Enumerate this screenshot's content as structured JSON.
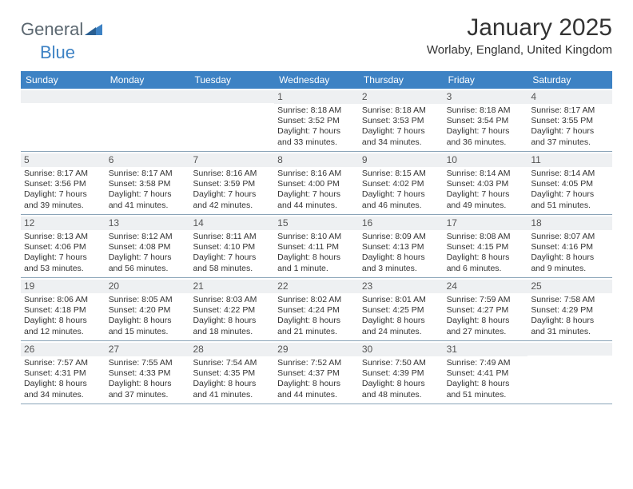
{
  "brand": {
    "word1": "General",
    "word2": "Blue",
    "color_general": "#5b6770",
    "color_blue": "#3d82c4"
  },
  "title": "January 2025",
  "location": "Worlaby, England, United Kingdom",
  "header_bg": "#3d82c4",
  "header_text_color": "#ffffff",
  "daynum_bg": "#eef0f2",
  "border_color": "#8aa4b8",
  "text_color": "#333333",
  "day_names": [
    "Sunday",
    "Monday",
    "Tuesday",
    "Wednesday",
    "Thursday",
    "Friday",
    "Saturday"
  ],
  "weeks": [
    [
      null,
      null,
      null,
      {
        "n": "1",
        "sr": "Sunrise: 8:18 AM",
        "ss": "Sunset: 3:52 PM",
        "d1": "Daylight: 7 hours",
        "d2": "and 33 minutes."
      },
      {
        "n": "2",
        "sr": "Sunrise: 8:18 AM",
        "ss": "Sunset: 3:53 PM",
        "d1": "Daylight: 7 hours",
        "d2": "and 34 minutes."
      },
      {
        "n": "3",
        "sr": "Sunrise: 8:18 AM",
        "ss": "Sunset: 3:54 PM",
        "d1": "Daylight: 7 hours",
        "d2": "and 36 minutes."
      },
      {
        "n": "4",
        "sr": "Sunrise: 8:17 AM",
        "ss": "Sunset: 3:55 PM",
        "d1": "Daylight: 7 hours",
        "d2": "and 37 minutes."
      }
    ],
    [
      {
        "n": "5",
        "sr": "Sunrise: 8:17 AM",
        "ss": "Sunset: 3:56 PM",
        "d1": "Daylight: 7 hours",
        "d2": "and 39 minutes."
      },
      {
        "n": "6",
        "sr": "Sunrise: 8:17 AM",
        "ss": "Sunset: 3:58 PM",
        "d1": "Daylight: 7 hours",
        "d2": "and 41 minutes."
      },
      {
        "n": "7",
        "sr": "Sunrise: 8:16 AM",
        "ss": "Sunset: 3:59 PM",
        "d1": "Daylight: 7 hours",
        "d2": "and 42 minutes."
      },
      {
        "n": "8",
        "sr": "Sunrise: 8:16 AM",
        "ss": "Sunset: 4:00 PM",
        "d1": "Daylight: 7 hours",
        "d2": "and 44 minutes."
      },
      {
        "n": "9",
        "sr": "Sunrise: 8:15 AM",
        "ss": "Sunset: 4:02 PM",
        "d1": "Daylight: 7 hours",
        "d2": "and 46 minutes."
      },
      {
        "n": "10",
        "sr": "Sunrise: 8:14 AM",
        "ss": "Sunset: 4:03 PM",
        "d1": "Daylight: 7 hours",
        "d2": "and 49 minutes."
      },
      {
        "n": "11",
        "sr": "Sunrise: 8:14 AM",
        "ss": "Sunset: 4:05 PM",
        "d1": "Daylight: 7 hours",
        "d2": "and 51 minutes."
      }
    ],
    [
      {
        "n": "12",
        "sr": "Sunrise: 8:13 AM",
        "ss": "Sunset: 4:06 PM",
        "d1": "Daylight: 7 hours",
        "d2": "and 53 minutes."
      },
      {
        "n": "13",
        "sr": "Sunrise: 8:12 AM",
        "ss": "Sunset: 4:08 PM",
        "d1": "Daylight: 7 hours",
        "d2": "and 56 minutes."
      },
      {
        "n": "14",
        "sr": "Sunrise: 8:11 AM",
        "ss": "Sunset: 4:10 PM",
        "d1": "Daylight: 7 hours",
        "d2": "and 58 minutes."
      },
      {
        "n": "15",
        "sr": "Sunrise: 8:10 AM",
        "ss": "Sunset: 4:11 PM",
        "d1": "Daylight: 8 hours",
        "d2": "and 1 minute."
      },
      {
        "n": "16",
        "sr": "Sunrise: 8:09 AM",
        "ss": "Sunset: 4:13 PM",
        "d1": "Daylight: 8 hours",
        "d2": "and 3 minutes."
      },
      {
        "n": "17",
        "sr": "Sunrise: 8:08 AM",
        "ss": "Sunset: 4:15 PM",
        "d1": "Daylight: 8 hours",
        "d2": "and 6 minutes."
      },
      {
        "n": "18",
        "sr": "Sunrise: 8:07 AM",
        "ss": "Sunset: 4:16 PM",
        "d1": "Daylight: 8 hours",
        "d2": "and 9 minutes."
      }
    ],
    [
      {
        "n": "19",
        "sr": "Sunrise: 8:06 AM",
        "ss": "Sunset: 4:18 PM",
        "d1": "Daylight: 8 hours",
        "d2": "and 12 minutes."
      },
      {
        "n": "20",
        "sr": "Sunrise: 8:05 AM",
        "ss": "Sunset: 4:20 PM",
        "d1": "Daylight: 8 hours",
        "d2": "and 15 minutes."
      },
      {
        "n": "21",
        "sr": "Sunrise: 8:03 AM",
        "ss": "Sunset: 4:22 PM",
        "d1": "Daylight: 8 hours",
        "d2": "and 18 minutes."
      },
      {
        "n": "22",
        "sr": "Sunrise: 8:02 AM",
        "ss": "Sunset: 4:24 PM",
        "d1": "Daylight: 8 hours",
        "d2": "and 21 minutes."
      },
      {
        "n": "23",
        "sr": "Sunrise: 8:01 AM",
        "ss": "Sunset: 4:25 PM",
        "d1": "Daylight: 8 hours",
        "d2": "and 24 minutes."
      },
      {
        "n": "24",
        "sr": "Sunrise: 7:59 AM",
        "ss": "Sunset: 4:27 PM",
        "d1": "Daylight: 8 hours",
        "d2": "and 27 minutes."
      },
      {
        "n": "25",
        "sr": "Sunrise: 7:58 AM",
        "ss": "Sunset: 4:29 PM",
        "d1": "Daylight: 8 hours",
        "d2": "and 31 minutes."
      }
    ],
    [
      {
        "n": "26",
        "sr": "Sunrise: 7:57 AM",
        "ss": "Sunset: 4:31 PM",
        "d1": "Daylight: 8 hours",
        "d2": "and 34 minutes."
      },
      {
        "n": "27",
        "sr": "Sunrise: 7:55 AM",
        "ss": "Sunset: 4:33 PM",
        "d1": "Daylight: 8 hours",
        "d2": "and 37 minutes."
      },
      {
        "n": "28",
        "sr": "Sunrise: 7:54 AM",
        "ss": "Sunset: 4:35 PM",
        "d1": "Daylight: 8 hours",
        "d2": "and 41 minutes."
      },
      {
        "n": "29",
        "sr": "Sunrise: 7:52 AM",
        "ss": "Sunset: 4:37 PM",
        "d1": "Daylight: 8 hours",
        "d2": "and 44 minutes."
      },
      {
        "n": "30",
        "sr": "Sunrise: 7:50 AM",
        "ss": "Sunset: 4:39 PM",
        "d1": "Daylight: 8 hours",
        "d2": "and 48 minutes."
      },
      {
        "n": "31",
        "sr": "Sunrise: 7:49 AM",
        "ss": "Sunset: 4:41 PM",
        "d1": "Daylight: 8 hours",
        "d2": "and 51 minutes."
      },
      null
    ]
  ]
}
